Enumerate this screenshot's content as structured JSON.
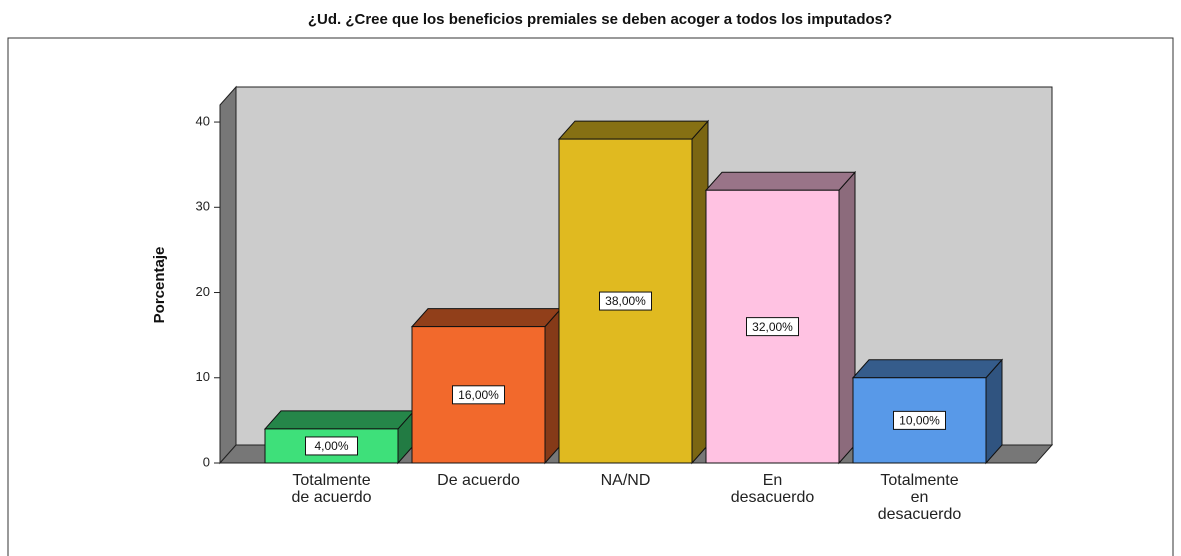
{
  "chart_data": {
    "type": "bar3d",
    "title": "¿Ud. ¿Cree que los beneficios premiales se deben acoger a todos los imputados?",
    "ylabel": "Porcentaje",
    "categories": [
      "Totalmente de acuerdo",
      "De acuerdo",
      "NA/ND",
      "En desacuerdo",
      "Totalmente en desacuerdo"
    ],
    "values": [
      4,
      16,
      38,
      32,
      10
    ],
    "value_labels": [
      "4,00%",
      "16,00%",
      "38,00%",
      "32,00%",
      "10,00%"
    ],
    "colors": [
      "#3ee07a",
      "#f2692c",
      "#e0ba20",
      "#ffc2e2",
      "#5899e8"
    ],
    "ylim": [
      0,
      42
    ],
    "yticks": [
      0,
      10,
      20,
      30,
      40
    ]
  }
}
